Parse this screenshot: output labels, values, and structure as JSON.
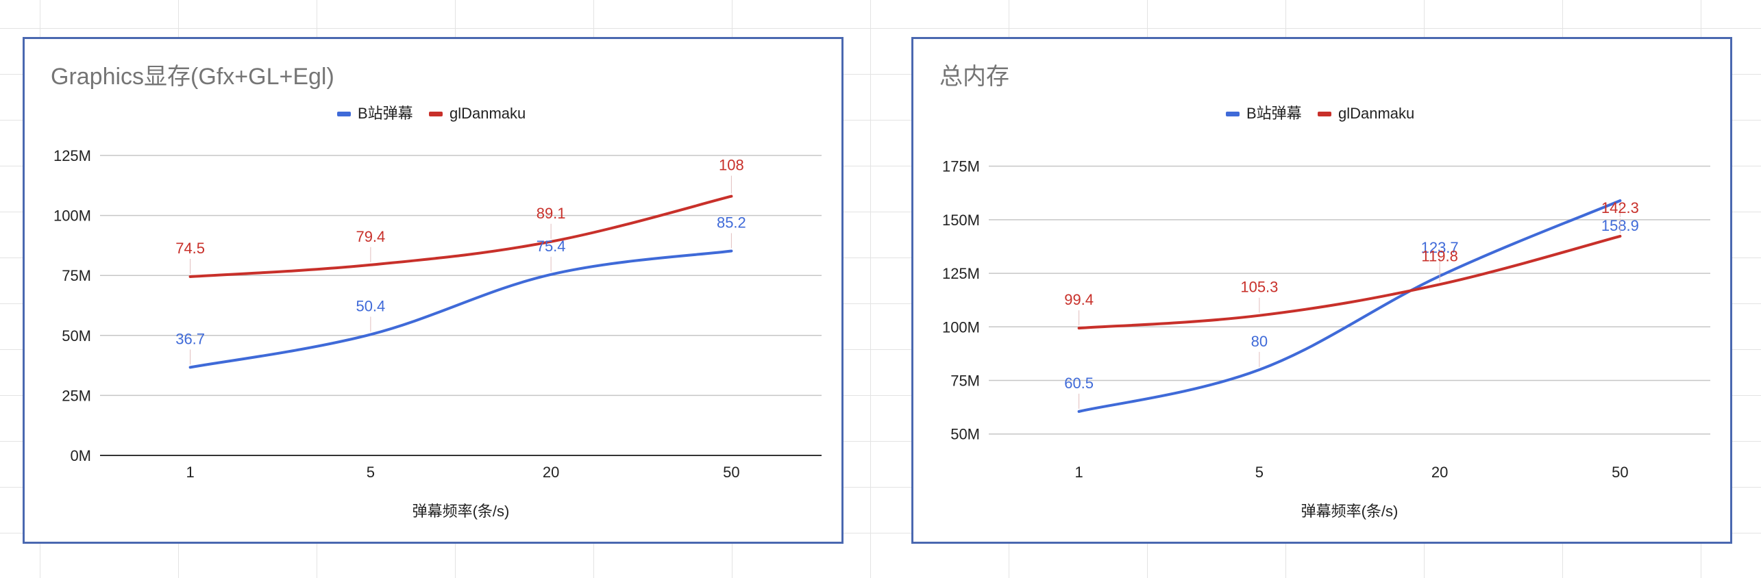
{
  "chart_data": [
    {
      "type": "line",
      "title": "Graphics显存(Gfx+GL+Egl)",
      "xlabel": "弹幕频率(条/s)",
      "ylabel": "",
      "categories": [
        "1",
        "5",
        "20",
        "50"
      ],
      "ylim": [
        0,
        125
      ],
      "yticks": [
        "0M",
        "25M",
        "50M",
        "75M",
        "100M",
        "125M"
      ],
      "ytick_values": [
        0,
        25,
        50,
        75,
        100,
        125
      ],
      "grid": true,
      "legend_position": "top",
      "series": [
        {
          "name": "B站弹幕",
          "color": "#3f6ad8",
          "values": [
            36.7,
            50.4,
            75.4,
            85.2
          ],
          "labels": [
            "36.7",
            "50.4",
            "75.4",
            "85.2"
          ]
        },
        {
          "name": "glDanmaku",
          "color": "#c8302a",
          "values": [
            74.5,
            79.4,
            89.1,
            108
          ],
          "labels": [
            "74.5",
            "79.4",
            "89.1",
            "108"
          ]
        }
      ]
    },
    {
      "type": "line",
      "title": "总内存",
      "xlabel": "弹幕频率(条/s)",
      "ylabel": "",
      "categories": [
        "1",
        "5",
        "20",
        "50"
      ],
      "ylim": [
        40,
        180
      ],
      "yticks": [
        "50M",
        "75M",
        "100M",
        "125M",
        "150M",
        "175M"
      ],
      "ytick_values": [
        50,
        75,
        100,
        125,
        150,
        175
      ],
      "grid": true,
      "legend_position": "top",
      "series": [
        {
          "name": "B站弹幕",
          "color": "#3f6ad8",
          "values": [
            60.5,
            80,
            123.7,
            158.9
          ],
          "labels": [
            "60.5",
            "80",
            "123.7",
            "158.9"
          ]
        },
        {
          "name": "glDanmaku",
          "color": "#c8302a",
          "values": [
            99.4,
            105.3,
            119.8,
            142.3
          ],
          "labels": [
            "99.4",
            "105.3",
            "119.8",
            "142.3"
          ]
        }
      ]
    }
  ]
}
